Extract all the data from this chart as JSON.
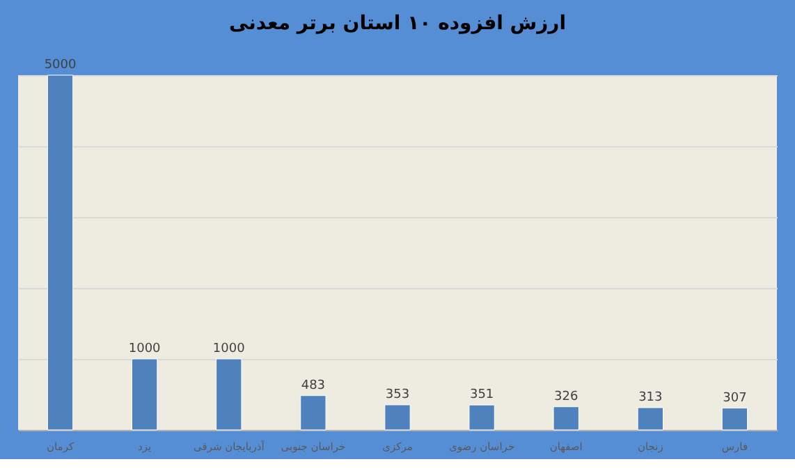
{
  "chart_data": {
    "type": "bar",
    "title": "ارزش افزوده ۱۰ استان برتر معدنی",
    "categories": [
      "کرمان",
      "یزد",
      "آذربایجان شرقی",
      "خراسان جنوبی",
      "مرکزی",
      "خراسان رضوی",
      "اصفهان",
      "زنجان",
      "فارس"
    ],
    "values": [
      5000,
      1000,
      1000,
      483,
      353,
      351,
      326,
      313,
      307
    ],
    "color": "#4f81bd",
    "ylim": [
      0,
      5000
    ],
    "yticks": [
      {
        "value": 0,
        "label": null
      },
      {
        "value": 1000,
        "label": null
      },
      {
        "value": 2000,
        "label": null
      },
      {
        "value": 3000,
        "label": null
      },
      {
        "value": 4000,
        "label": null
      },
      {
        "value": 5000,
        "label": null
      }
    ],
    "grid": "y",
    "tick_labels": "x",
    "data_labels": true
  }
}
